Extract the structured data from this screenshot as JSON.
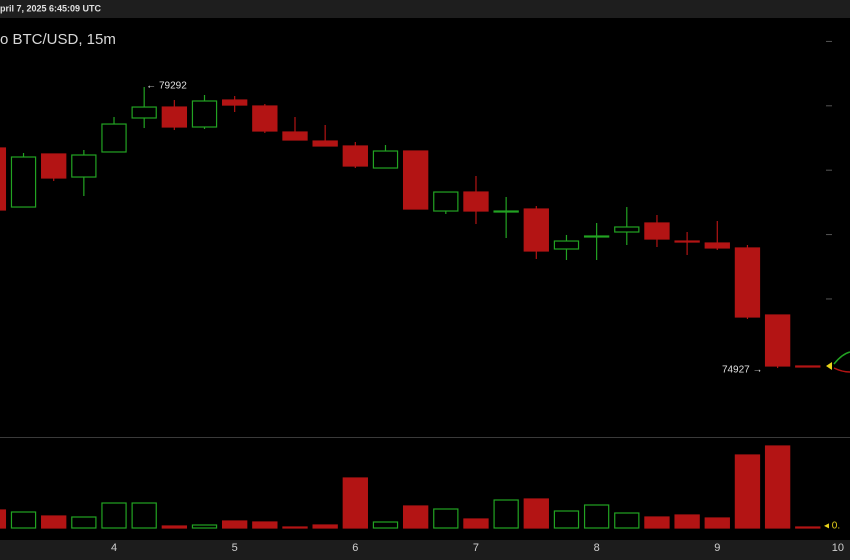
{
  "chart_data": {
    "type": "candlestick",
    "date_label": "pril 7, 2025 6:45:09 UTC",
    "title": "o BTC/USD, 15m",
    "open": [
      78345,
      77428,
      78252,
      77894,
      78283,
      78811,
      78981,
      78671,
      79090,
      78997,
      78593,
      78453,
      78376,
      78034,
      78298,
      77366,
      77661,
      77351,
      77397,
      76776,
      76963,
      77040,
      77180,
      76900,
      76869,
      76792,
      75751,
      74959
    ],
    "high": [
      78345,
      78267,
      78252,
      78314,
      78826,
      79292,
      79090,
      79168,
      79152,
      79028,
      78826,
      78702,
      78438,
      78391,
      78298,
      77661,
      77910,
      77584,
      77444,
      76994,
      77180,
      77428,
      77304,
      77040,
      77211,
      76838,
      75751,
      74959
    ],
    "low": [
      77382,
      77428,
      77832,
      77599,
      78283,
      78655,
      78624,
      78640,
      78904,
      78578,
      78469,
      78376,
      78034,
      78034,
      77397,
      77320,
      77164,
      76947,
      76621,
      76605,
      76605,
      76838,
      76807,
      76683,
      76761,
      75689,
      74927,
      74944
    ],
    "close": [
      77382,
      78205,
      77879,
      78236,
      78717,
      78981,
      78671,
      79075,
      79012,
      78609,
      78469,
      78376,
      78065,
      78298,
      77397,
      77661,
      77366,
      77366,
      76745,
      76900,
      76978,
      77118,
      76931,
      76885,
      76792,
      75720,
      74959,
      74944
    ],
    "volume": [
      18,
      16,
      12,
      11,
      25,
      25,
      2,
      3,
      7,
      6,
      1,
      3,
      50,
      6,
      22,
      19,
      9,
      28,
      29,
      17,
      23,
      15,
      11,
      13,
      10,
      73,
      82,
      1
    ],
    "up_color": "#22a322",
    "down_color": "#b31414",
    "high_label": "← 79292",
    "low_label": "74927 →",
    "volume_last_label": "◂ 0.",
    "ylim": [
      73856,
      80364
    ],
    "yticks": [
      76000,
      77000,
      78000,
      79000,
      80000
    ],
    "volume_ylim": [
      0,
      91
    ],
    "xlim": [
      0.22,
      28.4
    ],
    "xticks": [
      {
        "value": 4,
        "label": "4"
      },
      {
        "value": 8,
        "label": "5"
      },
      {
        "value": 12,
        "label": "6"
      },
      {
        "value": 16,
        "label": "7"
      },
      {
        "value": 20,
        "label": "8"
      },
      {
        "value": 24,
        "label": "9"
      },
      {
        "value": 28,
        "label": "10"
      }
    ]
  }
}
